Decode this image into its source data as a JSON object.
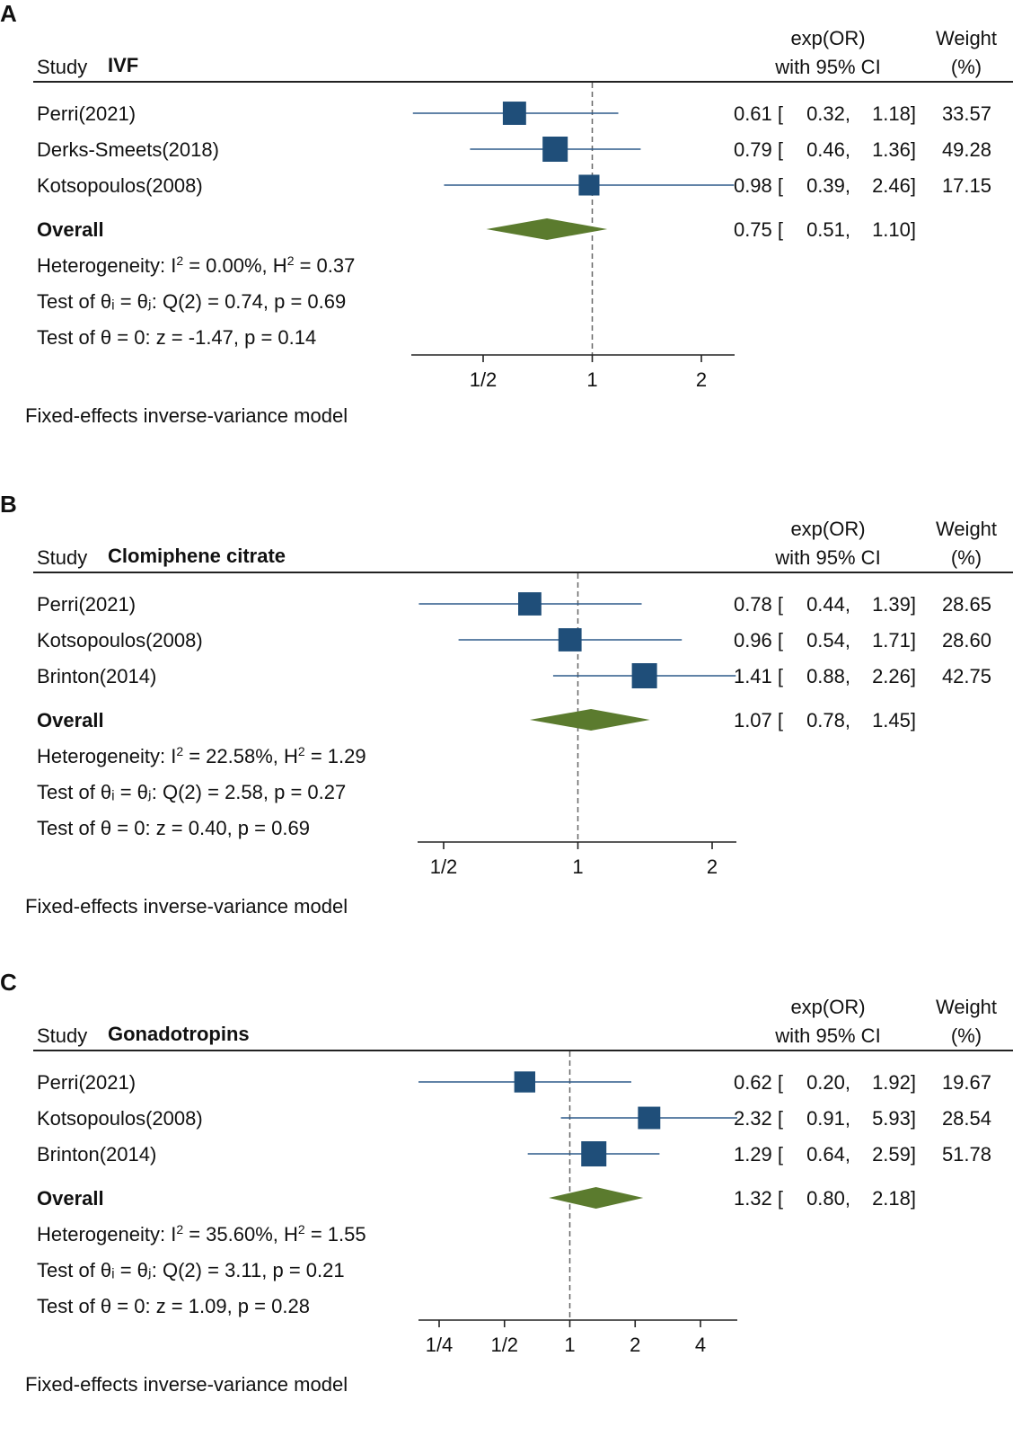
{
  "chart_data": [
    {
      "type": "forest",
      "panel_label": "A",
      "study_header": "Study",
      "subgroup": "IVF",
      "effect_header_line1": "exp(OR)",
      "effect_header_line2": "with 95% CI",
      "weight_header_line1": "Weight",
      "weight_header_line2": "(%)",
      "scale": "log2",
      "xlim": [
        0.3,
        2.5
      ],
      "ticks": [
        {
          "value": 0.5,
          "label": "1/2"
        },
        {
          "value": 1,
          "label": "1"
        },
        {
          "value": 2,
          "label": "2"
        }
      ],
      "reference_line": 1,
      "studies": [
        {
          "name": "Perri(2021)",
          "or": 0.61,
          "lo": 0.32,
          "hi": 1.18,
          "weight": 33.57,
          "or_text": "0.61",
          "lo_text": "0.32",
          "hi_text": "1.18",
          "weight_text": "33.57"
        },
        {
          "name": "Derks-Smeets(2018)",
          "or": 0.79,
          "lo": 0.46,
          "hi": 1.36,
          "weight": 49.28,
          "or_text": "0.79",
          "lo_text": "0.46",
          "hi_text": "1.36",
          "weight_text": "49.28"
        },
        {
          "name": "Kotsopoulos(2008)",
          "or": 0.98,
          "lo": 0.39,
          "hi": 2.46,
          "weight": 17.15,
          "or_text": "0.98",
          "lo_text": "0.39",
          "hi_text": "2.46",
          "weight_text": "17.15"
        }
      ],
      "overall": {
        "label": "Overall",
        "or": 0.75,
        "lo": 0.51,
        "hi": 1.1,
        "or_text": "0.75",
        "lo_text": "0.51",
        "hi_text": "1.10"
      },
      "heterogeneity_prefix": "Heterogeneity: I",
      "i2_text": " = 0.00%, H",
      "h2_text": " = 0.37",
      "test_q_text": "Test of θᵢ = θⱼ: Q(2) = 0.74, p = 0.69",
      "test_z_text": "Test of θ = 0: z = -1.47, p = 0.14",
      "model_note": "Fixed-effects inverse-variance model"
    },
    {
      "type": "forest",
      "panel_label": "B",
      "study_header": "Study",
      "subgroup": "Clomiphene citrate",
      "effect_header_line1": "exp(OR)",
      "effect_header_line2": "with 95% CI",
      "weight_header_line1": "Weight",
      "weight_header_line2": "(%)",
      "scale": "log2",
      "xlim": [
        0.42,
        2.26
      ],
      "ticks": [
        {
          "value": 0.5,
          "label": "1/2"
        },
        {
          "value": 1,
          "label": "1"
        },
        {
          "value": 2,
          "label": "2"
        }
      ],
      "reference_line": 1,
      "studies": [
        {
          "name": "Perri(2021)",
          "or": 0.78,
          "lo": 0.44,
          "hi": 1.39,
          "weight": 28.65,
          "or_text": "0.78",
          "lo_text": "0.44",
          "hi_text": "1.39",
          "weight_text": "28.65"
        },
        {
          "name": "Kotsopoulos(2008)",
          "or": 0.96,
          "lo": 0.54,
          "hi": 1.71,
          "weight": 28.6,
          "or_text": "0.96",
          "lo_text": "0.54",
          "hi_text": "1.71",
          "weight_text": "28.60"
        },
        {
          "name": "Brinton(2014)",
          "or": 1.41,
          "lo": 0.88,
          "hi": 2.26,
          "weight": 42.75,
          "or_text": "1.41",
          "lo_text": "0.88",
          "hi_text": "2.26",
          "weight_text": "42.75"
        }
      ],
      "overall": {
        "label": "Overall",
        "or": 1.07,
        "lo": 0.78,
        "hi": 1.45,
        "or_text": "1.07",
        "lo_text": "0.78",
        "hi_text": "1.45"
      },
      "heterogeneity_prefix": "Heterogeneity: I",
      "i2_text": " = 22.58%, H",
      "h2_text": " = 1.29",
      "test_q_text": "Test of θᵢ = θⱼ: Q(2) = 2.58, p = 0.27",
      "test_z_text": "Test of θ = 0: z = 0.40, p = 0.69",
      "model_note": "Fixed-effects inverse-variance model"
    },
    {
      "type": "forest",
      "panel_label": "C",
      "study_header": "Study",
      "subgroup": "Gonadotropins",
      "effect_header_line1": "exp(OR)",
      "effect_header_line2": "with 95% CI",
      "weight_header_line1": "Weight",
      "weight_header_line2": "(%)",
      "scale": "log2",
      "xlim": [
        0.2,
        5.93
      ],
      "ticks": [
        {
          "value": 0.25,
          "label": "1/4"
        },
        {
          "value": 0.5,
          "label": "1/2"
        },
        {
          "value": 1,
          "label": "1"
        },
        {
          "value": 2,
          "label": "2"
        },
        {
          "value": 4,
          "label": "4"
        }
      ],
      "reference_line": 1,
      "studies": [
        {
          "name": "Perri(2021)",
          "or": 0.62,
          "lo": 0.2,
          "hi": 1.92,
          "weight": 19.67,
          "or_text": "0.62",
          "lo_text": "0.20",
          "hi_text": "1.92",
          "weight_text": "19.67"
        },
        {
          "name": "Kotsopoulos(2008)",
          "or": 2.32,
          "lo": 0.91,
          "hi": 5.93,
          "weight": 28.54,
          "or_text": "2.32",
          "lo_text": "0.91",
          "hi_text": "5.93",
          "weight_text": "28.54"
        },
        {
          "name": "Brinton(2014)",
          "or": 1.29,
          "lo": 0.64,
          "hi": 2.59,
          "weight": 51.78,
          "or_text": "1.29",
          "lo_text": "0.64",
          "hi_text": "2.59",
          "weight_text": "51.78"
        }
      ],
      "overall": {
        "label": "Overall",
        "or": 1.32,
        "lo": 0.8,
        "hi": 2.18,
        "or_text": "1.32",
        "lo_text": "0.80",
        "hi_text": "2.18"
      },
      "heterogeneity_prefix": "Heterogeneity: I",
      "i2_text": " = 35.60%, H",
      "h2_text": " = 1.55",
      "test_q_text": "Test of θᵢ = θⱼ: Q(2) = 3.11, p = 0.21",
      "test_z_text": "Test of θ = 0: z = 1.09, p = 0.28",
      "model_note": "Fixed-effects inverse-variance model"
    }
  ],
  "colors": {
    "marker": "#1f4e79",
    "ci_line": "#2d5a8a",
    "diamond": "#5b7b2e",
    "axis": "#222222",
    "reference": "#666666",
    "text": "#111111"
  },
  "icons": {
    "marker": "square-marker-icon",
    "overall": "diamond-icon"
  }
}
